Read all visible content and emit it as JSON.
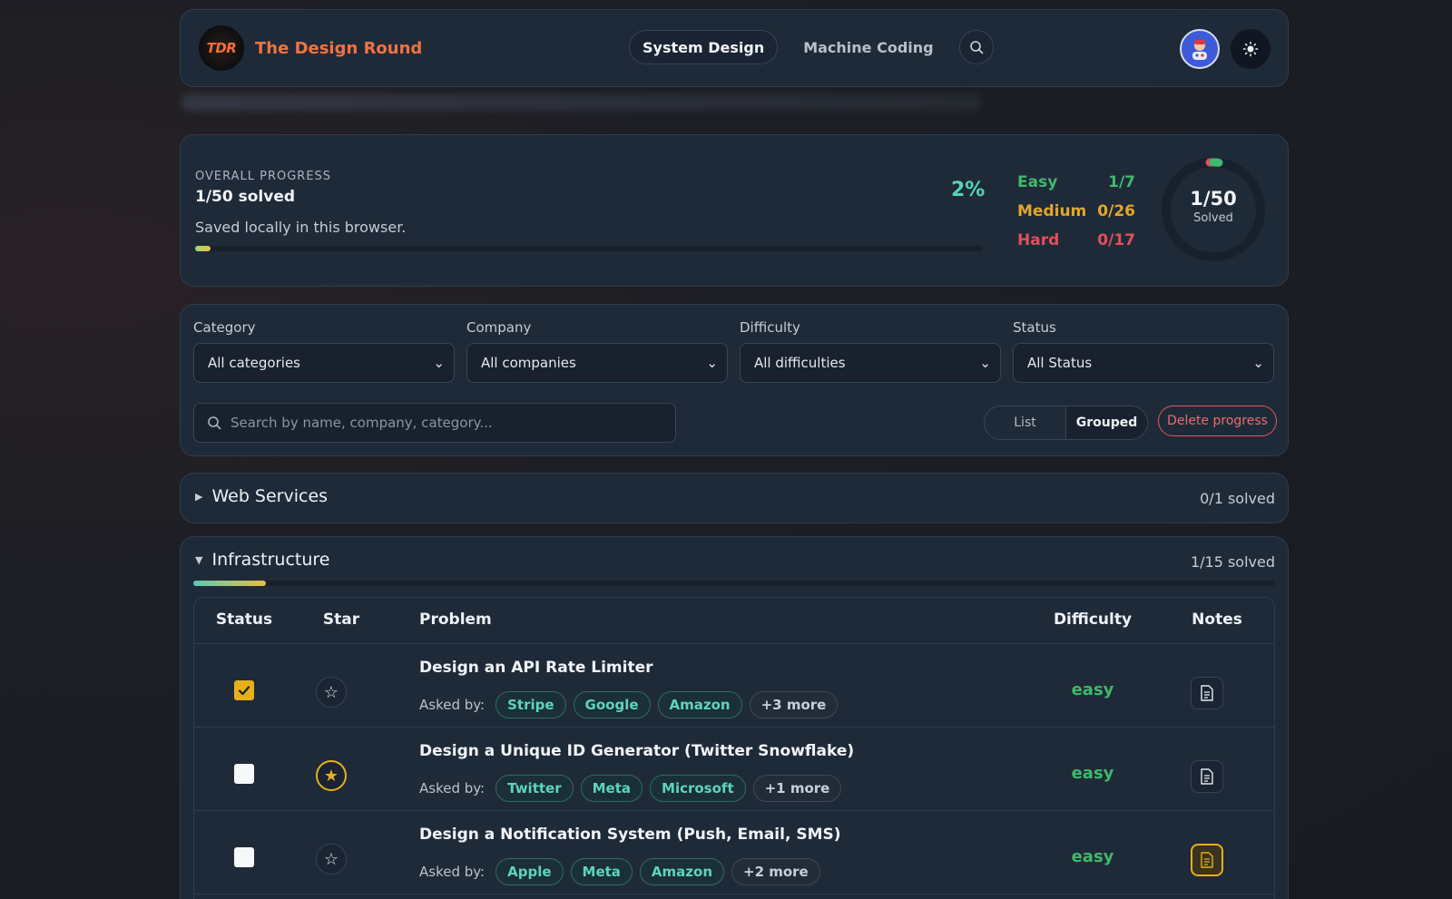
{
  "header": {
    "logo_text": "TDR",
    "brand": "The Design Round",
    "nav": [
      {
        "label": "System Design",
        "active": true
      },
      {
        "label": "Machine Coding",
        "active": false
      }
    ],
    "icons": [
      "search-icon",
      "avatar",
      "sun-icon"
    ]
  },
  "progress": {
    "label": "OVERALL PROGRESS",
    "solved_text": "1/50 solved",
    "saved_note": "Saved locally in this browser.",
    "percent_text": "2%",
    "fraction": 0.02,
    "difficulty": [
      {
        "name": "Easy",
        "value": "1/7",
        "color": "#3fb96b"
      },
      {
        "name": "Medium",
        "value": "0/26",
        "color": "#e2a72a"
      },
      {
        "name": "Hard",
        "value": "0/17",
        "color": "#e0505a"
      }
    ],
    "ring_value": "1/50",
    "ring_label": "Solved"
  },
  "filters": {
    "category": {
      "label": "Category",
      "value": "All categories"
    },
    "company": {
      "label": "Company",
      "value": "All companies"
    },
    "difficulty": {
      "label": "Difficulty",
      "value": "All difficulties"
    },
    "status": {
      "label": "Status",
      "value": "All Status"
    },
    "search_placeholder": "Search by name, company, category...",
    "view_list": "List",
    "view_grouped": "Grouped",
    "delete_label": "Delete progress"
  },
  "groups": [
    {
      "name": "Web Services",
      "count": "0/1 solved",
      "expanded": false
    },
    {
      "name": "Infrastructure",
      "count": "1/15 solved",
      "expanded": true,
      "fraction": 0.0667
    }
  ],
  "table": {
    "headers": {
      "status": "Status",
      "star": "Star",
      "problem": "Problem",
      "difficulty": "Difficulty",
      "notes": "Notes"
    },
    "asked_label": "Asked by:",
    "rows": [
      {
        "title": "Design an API Rate Limiter",
        "companies": [
          "Stripe",
          "Google",
          "Amazon"
        ],
        "more": "+3 more",
        "difficulty": "easy",
        "solved": true,
        "starred": false,
        "has_notes": false
      },
      {
        "title": "Design a Unique ID Generator (Twitter Snowflake)",
        "companies": [
          "Twitter",
          "Meta",
          "Microsoft"
        ],
        "more": "+1 more",
        "difficulty": "easy",
        "solved": false,
        "starred": true,
        "has_notes": false
      },
      {
        "title": "Design a Notification System (Push, Email, SMS)",
        "companies": [
          "Apple",
          "Meta",
          "Amazon"
        ],
        "more": "+2 more",
        "difficulty": "easy",
        "solved": false,
        "starred": false,
        "has_notes": true
      }
    ]
  },
  "colors": {
    "accent_orange": "#ef7340",
    "teal": "#53d3b5",
    "gold": "#e6b01b",
    "danger": "#e3565d"
  }
}
